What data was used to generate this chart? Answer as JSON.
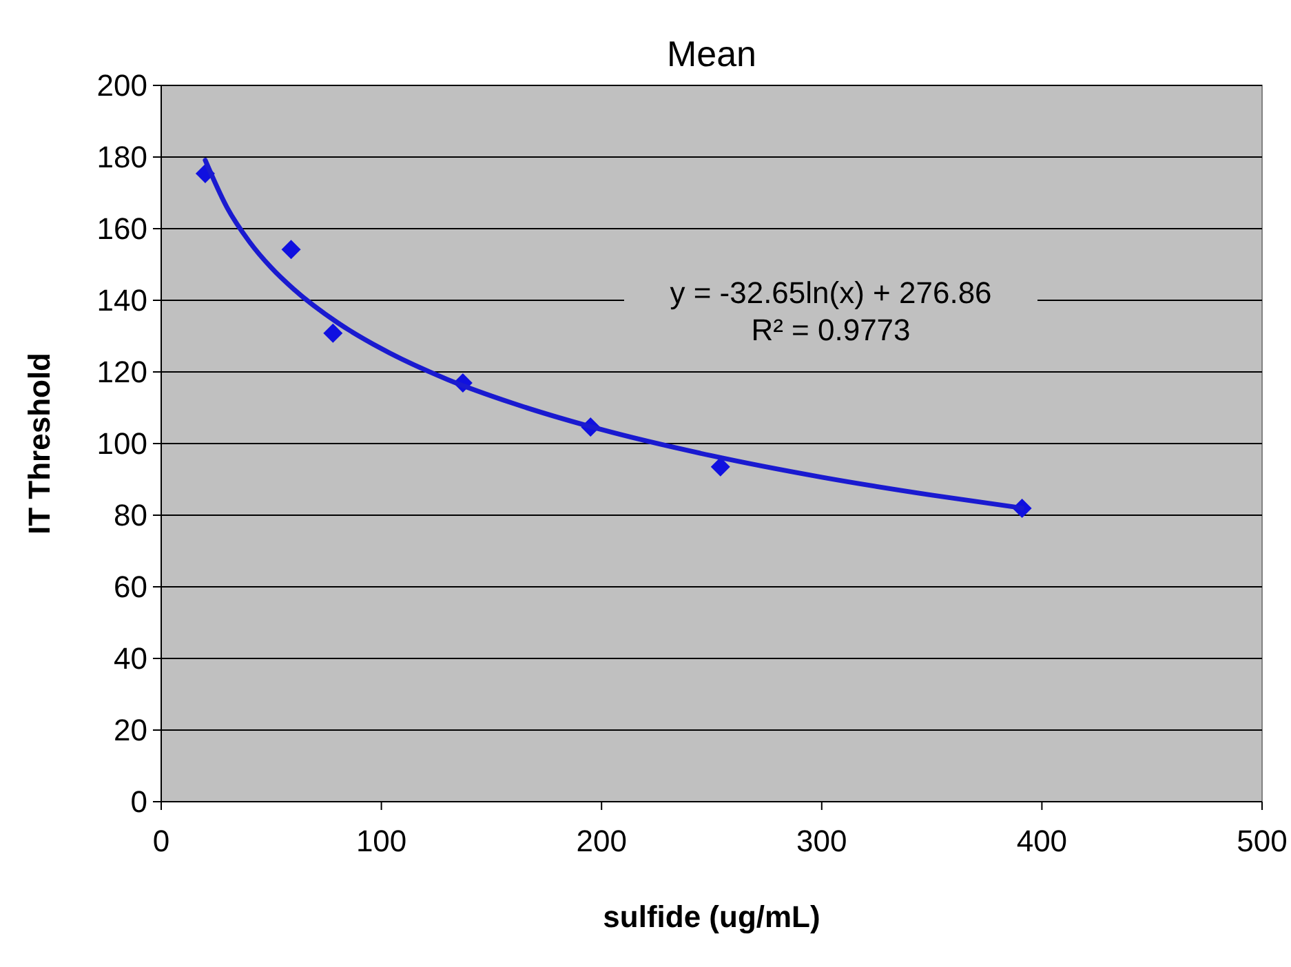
{
  "chart_data": {
    "type": "scatter",
    "title": "Mean",
    "xlabel": "sulfide (ug/mL)",
    "ylabel": "IT Threshold",
    "xlim": [
      0,
      500
    ],
    "xticks": [
      0,
      100,
      200,
      300,
      400,
      500
    ],
    "ylim": [
      0,
      200
    ],
    "yticks": [
      0,
      20,
      40,
      60,
      80,
      100,
      120,
      140,
      160,
      180,
      200
    ],
    "grid": "y",
    "marker": "diamond",
    "annotations": [
      "y = -32.65ln(x) + 276.86",
      "R² = 0.9773"
    ],
    "series": [
      {
        "color": "#1010e0",
        "x": [
          20,
          59,
          78,
          137,
          195,
          254,
          391
        ],
        "values": [
          175.4,
          154.2,
          130.8,
          116.9,
          104.6,
          93.5,
          81.9
        ]
      },
      {
        "type": "line",
        "color": "#1a1ad0",
        "line_style": "solid",
        "marker": "none",
        "x": [
          20,
          30,
          40,
          50,
          60,
          80,
          100,
          130,
          160,
          200,
          250,
          300,
          350,
          391
        ],
        "values": [
          179.1,
          165.8,
          156.4,
          149.1,
          143.2,
          133.8,
          126.5,
          117.9,
          111.2,
          103.9,
          96.6,
          90.6,
          85.6,
          82.0
        ]
      }
    ]
  }
}
